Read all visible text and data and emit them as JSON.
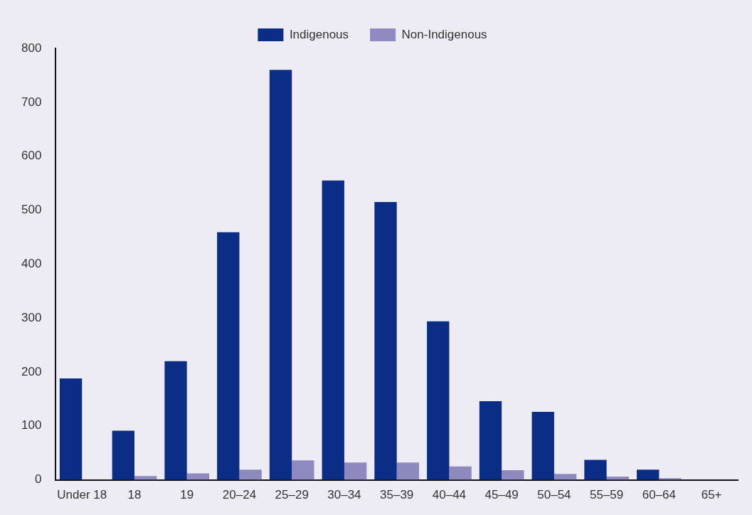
{
  "chart_data": {
    "type": "bar",
    "categories": [
      "Under 18",
      "18",
      "19",
      "20–24",
      "25–29",
      "30–34",
      "35–39",
      "40–44",
      "45–49",
      "50–54",
      "55–59",
      "60–64",
      "65+"
    ],
    "series": [
      {
        "name": "Indigenous",
        "color": "#0b2d86",
        "values": [
          188,
          91,
          220,
          459,
          760,
          555,
          515,
          294,
          146,
          126,
          37,
          19,
          null
        ]
      },
      {
        "name": "Non-Indigenous",
        "color": "#8e89be",
        "values": [
          0,
          7,
          12,
          19,
          36,
          32,
          32,
          25,
          18,
          11,
          6,
          3,
          null
        ]
      }
    ],
    "ylim": [
      0,
      800
    ],
    "yticks": [
      0,
      100,
      200,
      300,
      400,
      500,
      600,
      700,
      800
    ],
    "grid": false,
    "legend": "top"
  }
}
